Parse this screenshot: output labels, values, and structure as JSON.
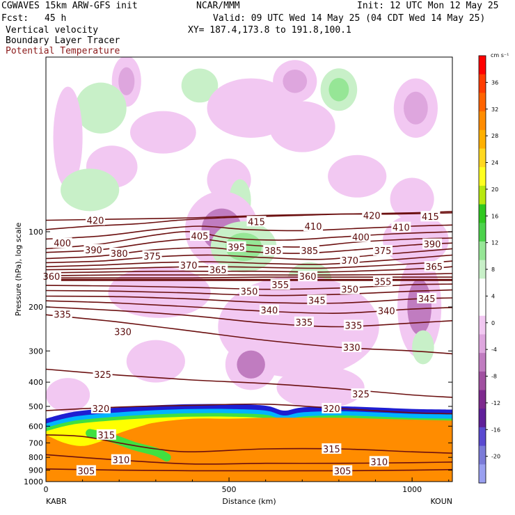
{
  "header": {
    "model": "CGWAVES 15km ARW-GFS init",
    "org": "NCAR/MMM",
    "init": "Init: 12 UTC Mon 12 May 25",
    "fcst_label": "Fcst:",
    "fcst_value": "45 h",
    "valid": "Valid: 09 UTC Wed 14 May 25 (04 CDT Wed 14 May 25)",
    "field1": "Vertical velocity",
    "field2": "Boundary Layer Tracer",
    "field3": "Potential Temperature",
    "xy": "XY= 187.4,173.8 to 191.8,100.1"
  },
  "colors": {
    "theta": "#6b0f0f",
    "neg": [
      "#f2c8f2",
      "#dea6de",
      "#c07cc0",
      "#a050a0",
      "#7e2a8e",
      "#60209a",
      "#5a4ad0",
      "#7b7bd8",
      "#9aa0f0"
    ],
    "pos": [
      "#c8f0c8",
      "#96e696",
      "#4cd24c",
      "#30c820",
      "#b8e810",
      "#ffff20",
      "#ffd820",
      "#ffb000",
      "#ff8c00",
      "#ff6400",
      "#ff3c00",
      "#ff0000"
    ],
    "tracer": [
      "#1e1ed2",
      "#1e64ff",
      "#00b4ff",
      "#00e0b0",
      "#40e040",
      "#b0f020",
      "#ffff00",
      "#ffb000",
      "#ff8c00"
    ]
  },
  "chart_data": {
    "type": "contour",
    "title": "Vertical velocity",
    "xlabel": "Distance (km)",
    "ylabel": "Pressure (hPa), log scale",
    "xlim": [
      0,
      1110
    ],
    "ylim": [
      1000,
      20
    ],
    "xticks": [
      0,
      500,
      1000
    ],
    "yticks": [
      100,
      200,
      300,
      400,
      500,
      600,
      700,
      800,
      900,
      1000
    ],
    "y_scale": "log",
    "left_endpoint": "KABR",
    "right_endpoint": "KOUN",
    "colorbar": {
      "unit": "cm s⁻¹",
      "ticks": [
        36,
        32,
        28,
        24,
        20,
        16,
        12,
        8,
        4,
        0,
        -4,
        -8,
        -12,
        -16,
        -20
      ]
    },
    "theta_contours": [
      {
        "label": "415",
        "x": [
          0,
          120,
          250,
          360,
          480,
          580,
          700,
          820,
          950,
          1110
        ],
        "p": [
          98,
          95,
          93,
          90,
          88,
          87,
          86,
          85,
          85,
          84
        ]
      },
      {
        "label": "420",
        "x": [
          0,
          200,
          400,
          600,
          800,
          1000,
          1110
        ],
        "p": [
          90,
          89,
          88,
          86,
          85,
          84,
          83
        ]
      },
      {
        "label": "410",
        "x": [
          0,
          150,
          300,
          420,
          550,
          700,
          850,
          1000,
          1110
        ],
        "p": [
          107,
          104,
          98,
          95,
          98,
          99,
          97,
          95,
          94
        ]
      },
      {
        "label": "405",
        "x": [
          0,
          150,
          300,
          400,
          500,
          650,
          800,
          950,
          1110
        ],
        "p": [
          117,
          112,
          103,
          100,
          106,
          108,
          105,
          102,
          100
        ]
      },
      {
        "label": "400",
        "x": [
          0,
          150,
          300,
          420,
          550,
          700,
          850,
          1000,
          1110
        ],
        "p": [
          121,
          118,
          110,
          107,
          113,
          115,
          110,
          107,
          106
        ]
      },
      {
        "label": "395",
        "x": [
          0,
          150,
          300,
          450,
          550,
          700,
          850,
          1000,
          1110
        ],
        "p": [
          128,
          125,
          118,
          116,
          120,
          122,
          118,
          113,
          111
        ]
      },
      {
        "label": "390",
        "x": [
          0,
          150,
          300,
          450,
          600,
          750,
          900,
          1050,
          1110
        ],
        "p": [
          133,
          131,
          126,
          124,
          127,
          129,
          124,
          119,
          117
        ]
      },
      {
        "label": "385",
        "x": [
          0,
          150,
          300,
          450,
          600,
          750,
          900,
          1050,
          1110
        ],
        "p": [
          138,
          136,
          133,
          132,
          134,
          135,
          131,
          126,
          124
        ]
      },
      {
        "label": "380",
        "x": [
          0,
          150,
          300,
          450,
          600,
          750,
          900,
          1050,
          1110
        ],
        "p": [
          142,
          141,
          139,
          138,
          139,
          140,
          137,
          133,
          131
        ]
      },
      {
        "label": "375",
        "x": [
          0,
          150,
          300,
          450,
          600,
          750,
          900,
          1050,
          1110
        ],
        "p": [
          146,
          145,
          144,
          144,
          144,
          145,
          143,
          140,
          138
        ]
      },
      {
        "label": "370",
        "x": [
          0,
          200,
          400,
          600,
          800,
          1000,
          1110
        ],
        "p": [
          150,
          149,
          149,
          149,
          149,
          148,
          147
        ]
      },
      {
        "label": "365",
        "x": [
          0,
          200,
          400,
          600,
          800,
          1000,
          1110
        ],
        "p": [
          153,
          153,
          153,
          152,
          152,
          152,
          152
        ]
      },
      {
        "label": "360",
        "x": [
          0,
          300,
          600,
          900,
          1110
        ],
        "p": [
          156,
          156,
          156,
          156,
          156
        ]
      },
      {
        "label": "355",
        "x": [
          0,
          200,
          400,
          600,
          800,
          1000,
          1110
        ],
        "p": [
          164,
          165,
          167,
          170,
          168,
          163,
          162
        ]
      },
      {
        "label": "350",
        "x": [
          0,
          200,
          400,
          600,
          800,
          1000,
          1110
        ],
        "p": [
          172,
          173,
          176,
          180,
          178,
          173,
          171
        ]
      },
      {
        "label": "345",
        "x": [
          0,
          200,
          400,
          600,
          800,
          1000,
          1110
        ],
        "p": [
          181,
          182,
          186,
          192,
          193,
          186,
          184
        ]
      },
      {
        "label": "340",
        "x": [
          0,
          200,
          400,
          600,
          800,
          1000,
          1110
        ],
        "p": [
          189,
          193,
          200,
          208,
          212,
          204,
          201
        ]
      },
      {
        "label": "335",
        "x": [
          0,
          200,
          400,
          600,
          800,
          1000,
          1110
        ],
        "p": [
          200,
          207,
          217,
          232,
          240,
          232,
          227
        ]
      },
      {
        "label": "330",
        "x": [
          0,
          200,
          400,
          600,
          800,
          1000,
          1110
        ],
        "p": [
          215,
          230,
          250,
          272,
          290,
          300,
          308
        ]
      },
      {
        "label": "325",
        "x": [
          0,
          200,
          400,
          600,
          800,
          1000,
          1110
        ],
        "p": [
          355,
          375,
          392,
          405,
          425,
          450,
          460
        ]
      },
      {
        "label": "320",
        "x": [
          0,
          200,
          400,
          600,
          800,
          1000,
          1110
        ],
        "p": [
          520,
          503,
          495,
          490,
          510,
          530,
          535
        ]
      },
      {
        "label": "315",
        "x": [
          0,
          100,
          200,
          300,
          400,
          600,
          800,
          1000,
          1110
        ],
        "p": [
          650,
          660,
          700,
          740,
          760,
          740,
          740,
          760,
          770
        ]
      },
      {
        "label": "310",
        "x": [
          0,
          200,
          400,
          600,
          800,
          1000,
          1110
        ],
        "p": [
          780,
          820,
          850,
          845,
          845,
          840,
          835
        ]
      },
      {
        "label": "305",
        "x": [
          0,
          200,
          400,
          600,
          800,
          1000,
          1110
        ],
        "p": [
          890,
          900,
          905,
          905,
          905,
          900,
          895
        ]
      }
    ],
    "theta_labels": [
      {
        "text": "420",
        "x": 135,
        "p": 90
      },
      {
        "text": "420",
        "x": 890,
        "p": 86
      },
      {
        "text": "415",
        "x": 575,
        "p": 91
      },
      {
        "text": "415",
        "x": 1050,
        "p": 87
      },
      {
        "text": "410",
        "x": 730,
        "p": 95
      },
      {
        "text": "410",
        "x": 970,
        "p": 96
      },
      {
        "text": "405",
        "x": 420,
        "p": 104
      },
      {
        "text": "400",
        "x": 45,
        "p": 111
      },
      {
        "text": "400",
        "x": 860,
        "p": 105
      },
      {
        "text": "395",
        "x": 520,
        "p": 115
      },
      {
        "text": "390",
        "x": 130,
        "p": 118
      },
      {
        "text": "390",
        "x": 1055,
        "p": 112
      },
      {
        "text": "385",
        "x": 620,
        "p": 119
      },
      {
        "text": "385",
        "x": 720,
        "p": 119
      },
      {
        "text": "380",
        "x": 200,
        "p": 122
      },
      {
        "text": "375",
        "x": 290,
        "p": 125
      },
      {
        "text": "375",
        "x": 920,
        "p": 119
      },
      {
        "text": "370",
        "x": 390,
        "p": 136
      },
      {
        "text": "370",
        "x": 830,
        "p": 130
      },
      {
        "text": "365",
        "x": 470,
        "p": 142
      },
      {
        "text": "365",
        "x": 1060,
        "p": 138
      },
      {
        "text": "360",
        "x": 15,
        "p": 151
      },
      {
        "text": "360",
        "x": 715,
        "p": 151
      },
      {
        "text": "355",
        "x": 640,
        "p": 163
      },
      {
        "text": "355",
        "x": 920,
        "p": 158
      },
      {
        "text": "350",
        "x": 555,
        "p": 173
      },
      {
        "text": "350",
        "x": 830,
        "p": 170
      },
      {
        "text": "345",
        "x": 740,
        "p": 188
      },
      {
        "text": "345",
        "x": 1040,
        "p": 185
      },
      {
        "text": "340",
        "x": 610,
        "p": 206
      },
      {
        "text": "340",
        "x": 930,
        "p": 207
      },
      {
        "text": "335",
        "x": 45,
        "p": 214
      },
      {
        "text": "335",
        "x": 705,
        "p": 230
      },
      {
        "text": "335",
        "x": 840,
        "p": 237
      },
      {
        "text": "330",
        "x": 210,
        "p": 251
      },
      {
        "text": "330",
        "x": 835,
        "p": 290
      },
      {
        "text": "325",
        "x": 155,
        "p": 373
      },
      {
        "text": "325",
        "x": 860,
        "p": 446
      },
      {
        "text": "320",
        "x": 150,
        "p": 510
      },
      {
        "text": "320",
        "x": 780,
        "p": 510
      },
      {
        "text": "315",
        "x": 165,
        "p": 650
      },
      {
        "text": "315",
        "x": 780,
        "p": 740
      },
      {
        "text": "310",
        "x": 205,
        "p": 818
      },
      {
        "text": "310",
        "x": 910,
        "p": 832
      },
      {
        "text": "305",
        "x": 110,
        "p": 905
      },
      {
        "text": "305",
        "x": 810,
        "p": 905
      }
    ],
    "w_blobs": [
      {
        "x": 220,
        "p": 25,
        "rx": 40,
        "ry": 0.06,
        "level": -2
      },
      {
        "x": 680,
        "p": 25,
        "rx": 60,
        "ry": 0.05,
        "level": -2
      },
      {
        "x": 420,
        "p": 26,
        "rx": 50,
        "ry": 0.04,
        "level": 1
      },
      {
        "x": 800,
        "p": 27,
        "rx": 50,
        "ry": 0.05,
        "level": 2
      },
      {
        "x": 150,
        "p": 32,
        "rx": 70,
        "ry": 0.06,
        "level": 1
      },
      {
        "x": 560,
        "p": 32,
        "rx": 120,
        "ry": 0.07,
        "level": -1
      },
      {
        "x": 1010,
        "p": 32,
        "rx": 60,
        "ry": 0.07,
        "level": -2
      },
      {
        "x": 60,
        "p": 42,
        "rx": 40,
        "ry": 0.12,
        "level": -1
      },
      {
        "x": 320,
        "p": 40,
        "rx": 90,
        "ry": 0.05,
        "level": -1
      },
      {
        "x": 700,
        "p": 38,
        "rx": 90,
        "ry": 0.06,
        "level": -1
      },
      {
        "x": 180,
        "p": 55,
        "rx": 70,
        "ry": 0.05,
        "level": -1
      },
      {
        "x": 120,
        "p": 68,
        "rx": 80,
        "ry": 0.05,
        "level": 1
      },
      {
        "x": 500,
        "p": 62,
        "rx": 60,
        "ry": 0.05,
        "level": -1
      },
      {
        "x": 850,
        "p": 60,
        "rx": 80,
        "ry": 0.05,
        "level": -1
      },
      {
        "x": 530,
        "p": 75,
        "rx": 30,
        "ry": 0.05,
        "level": 1
      },
      {
        "x": 1000,
        "p": 74,
        "rx": 60,
        "ry": 0.05,
        "level": -1
      },
      {
        "x": 480,
        "p": 98,
        "rx": 100,
        "ry": 0.09,
        "level": -3
      },
      {
        "x": 540,
        "p": 115,
        "rx": 90,
        "ry": 0.06,
        "level": 2
      },
      {
        "x": 1010,
        "p": 108,
        "rx": 90,
        "ry": 0.06,
        "level": -1
      },
      {
        "x": 720,
        "p": 155,
        "rx": 60,
        "ry": 0.04,
        "level": 1
      },
      {
        "x": 310,
        "p": 175,
        "rx": 140,
        "ry": 0.06,
        "level": -1
      },
      {
        "x": 1020,
        "p": 200,
        "rx": 60,
        "ry": 0.12,
        "level": -3
      },
      {
        "x": 690,
        "p": 240,
        "rx": 220,
        "ry": 0.12,
        "level": -1
      },
      {
        "x": 300,
        "p": 330,
        "rx": 80,
        "ry": 0.05,
        "level": -1
      },
      {
        "x": 560,
        "p": 340,
        "rx": 70,
        "ry": 0.06,
        "level": -3
      },
      {
        "x": 1030,
        "p": 290,
        "rx": 30,
        "ry": 0.04,
        "level": 1
      },
      {
        "x": 60,
        "p": 450,
        "rx": 60,
        "ry": 0.04,
        "level": -1
      },
      {
        "x": 750,
        "p": 420,
        "rx": 120,
        "ry": 0.05,
        "level": -1
      }
    ],
    "tracer_top": {
      "x": [
        0,
        50,
        100,
        200,
        300,
        400,
        500,
        600,
        650,
        700,
        800,
        900,
        1000,
        1110
      ],
      "p": [
        560,
        535,
        520,
        505,
        495,
        490,
        490,
        497,
        520,
        505,
        500,
        505,
        512,
        515
      ]
    },
    "tracer_orange_top": {
      "x": [
        0,
        50,
        100,
        150,
        200,
        260,
        300,
        400,
        500,
        600,
        700,
        800,
        900,
        1000,
        1110
      ],
      "p": [
        650,
        700,
        720,
        690,
        640,
        600,
        580,
        560,
        560,
        555,
        555,
        555,
        560,
        565,
        570
      ]
    },
    "tracer_green_tongue": {
      "x": [
        120,
        180,
        240,
        300,
        330
      ],
      "p": [
        640,
        670,
        720,
        760,
        800
      ]
    }
  }
}
